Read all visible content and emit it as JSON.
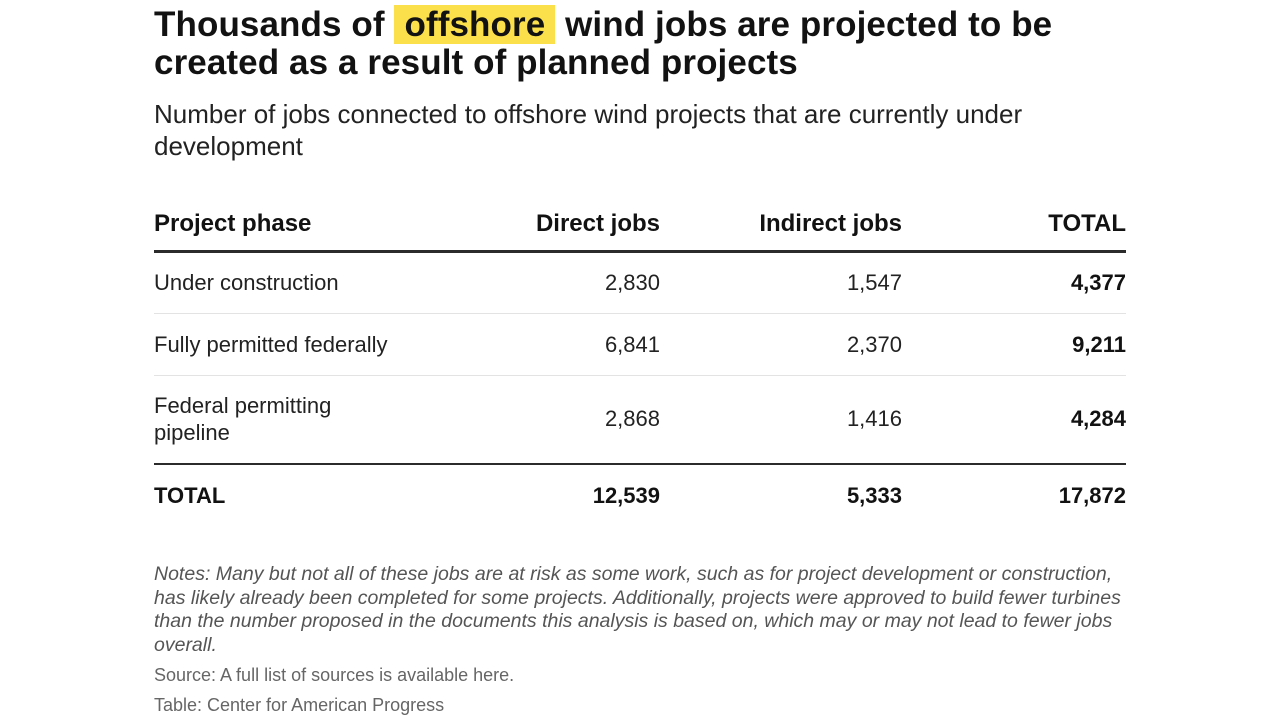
{
  "chart_data": {
    "type": "table",
    "title_before": "Thousands of",
    "title_highlight": "offshore",
    "title_after": "wind jobs are projected to be created as a result of planned projects",
    "subtitle": "Number of jobs connected to offshore wind projects that are currently under development",
    "columns": [
      "Project phase",
      "Direct jobs",
      "Indirect jobs",
      "TOTAL"
    ],
    "rows": [
      {
        "phase": "Under construction",
        "direct": "2,830",
        "indirect": "1,547",
        "total": "4,377"
      },
      {
        "phase": "Fully permitted federally",
        "direct": "6,841",
        "indirect": "2,370",
        "total": "9,211"
      },
      {
        "phase": "Federal permitting pipeline",
        "direct": "2,868",
        "indirect": "1,416",
        "total": "4,284"
      }
    ],
    "totals": {
      "label": "TOTAL",
      "direct": "12,539",
      "indirect": "5,333",
      "total": "17,872"
    },
    "notes": "Notes: Many but not all of these jobs are at risk as some work, such as for project development or construction, has likely already been completed for some projects. Additionally, projects were approved to build fewer turbines than the number proposed in the documents this analysis is based on, which may or may not lead to fewer jobs overall.",
    "source": "Source: A full list of sources is available here.",
    "credit": "Table: Center for American Progress",
    "highlight_color": "#fbe04b"
  }
}
